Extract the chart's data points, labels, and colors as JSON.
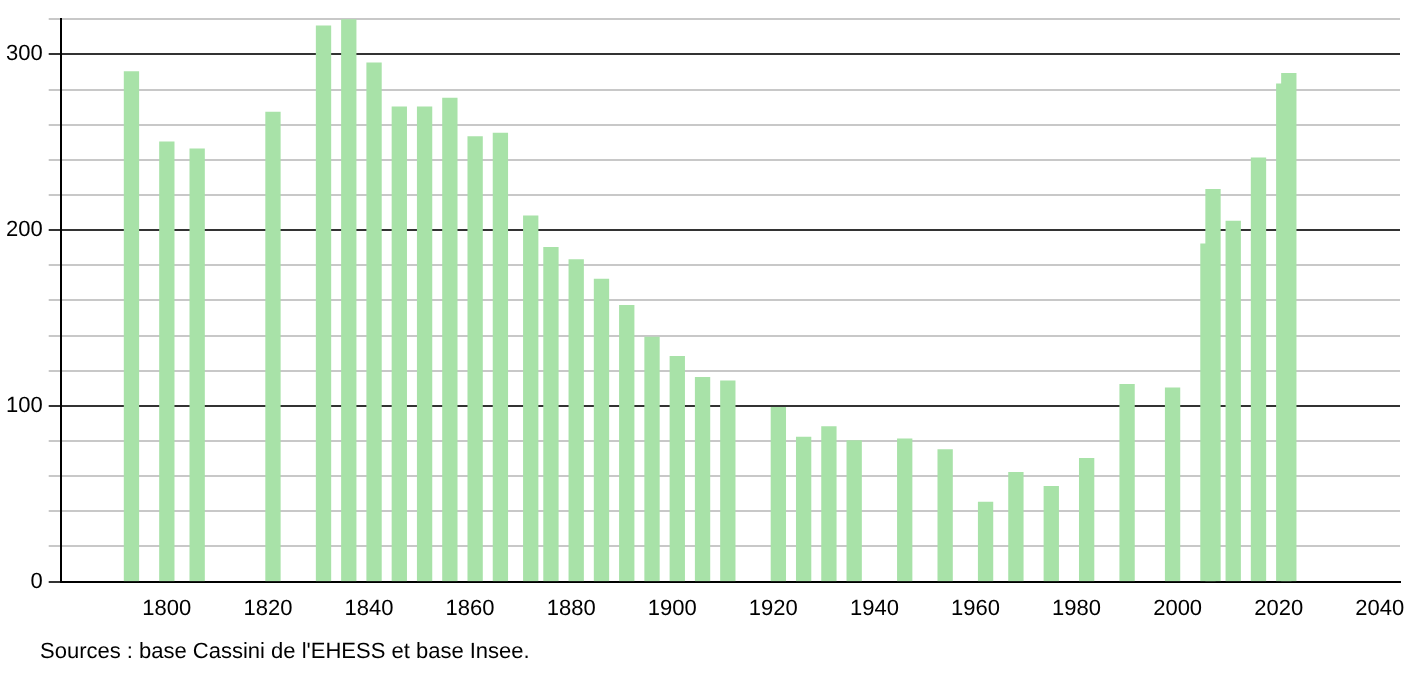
{
  "chart_data": {
    "type": "bar",
    "x": [
      1793,
      1800,
      1806,
      1821,
      1831,
      1836,
      1841,
      1846,
      1851,
      1856,
      1861,
      1866,
      1872,
      1876,
      1881,
      1886,
      1891,
      1896,
      1901,
      1906,
      1911,
      1921,
      1926,
      1931,
      1936,
      1946,
      1954,
      1962,
      1968,
      1975,
      1982,
      1990,
      1999,
      2006,
      2007,
      2011,
      2016,
      2021,
      2022
    ],
    "values": [
      290,
      250,
      246,
      267,
      316,
      320,
      295,
      270,
      270,
      275,
      253,
      255,
      208,
      190,
      183,
      172,
      157,
      139,
      128,
      116,
      114,
      99,
      82,
      88,
      80,
      81,
      75,
      45,
      62,
      54,
      70,
      112,
      110,
      192,
      223,
      205,
      241,
      283,
      289
    ],
    "color": "#a8e2a8",
    "xlim": [
      1779,
      2044
    ],
    "xticks": [
      1800,
      1820,
      1840,
      1860,
      1880,
      1900,
      1920,
      1940,
      1960,
      1980,
      2000,
      2020,
      2040
    ],
    "ylim": [
      0,
      320
    ],
    "yticks": [
      0,
      {
        "value": 20,
        "label": null
      },
      {
        "value": 40,
        "label": null
      },
      {
        "value": 60,
        "label": null
      },
      {
        "value": 80,
        "label": null
      },
      100,
      {
        "value": 120,
        "label": null
      },
      {
        "value": 140,
        "label": null
      },
      {
        "value": 160,
        "label": null
      },
      {
        "value": 180,
        "label": null
      },
      200,
      {
        "value": 220,
        "label": null
      },
      {
        "value": 240,
        "label": null
      },
      {
        "value": 260,
        "label": null
      },
      {
        "value": 280,
        "label": null
      },
      300,
      {
        "value": 320,
        "label": null
      }
    ],
    "grid": "y",
    "legend": false,
    "annotations": [
      "Sources : base Cassini de l'EHESS et base Insee."
    ]
  }
}
